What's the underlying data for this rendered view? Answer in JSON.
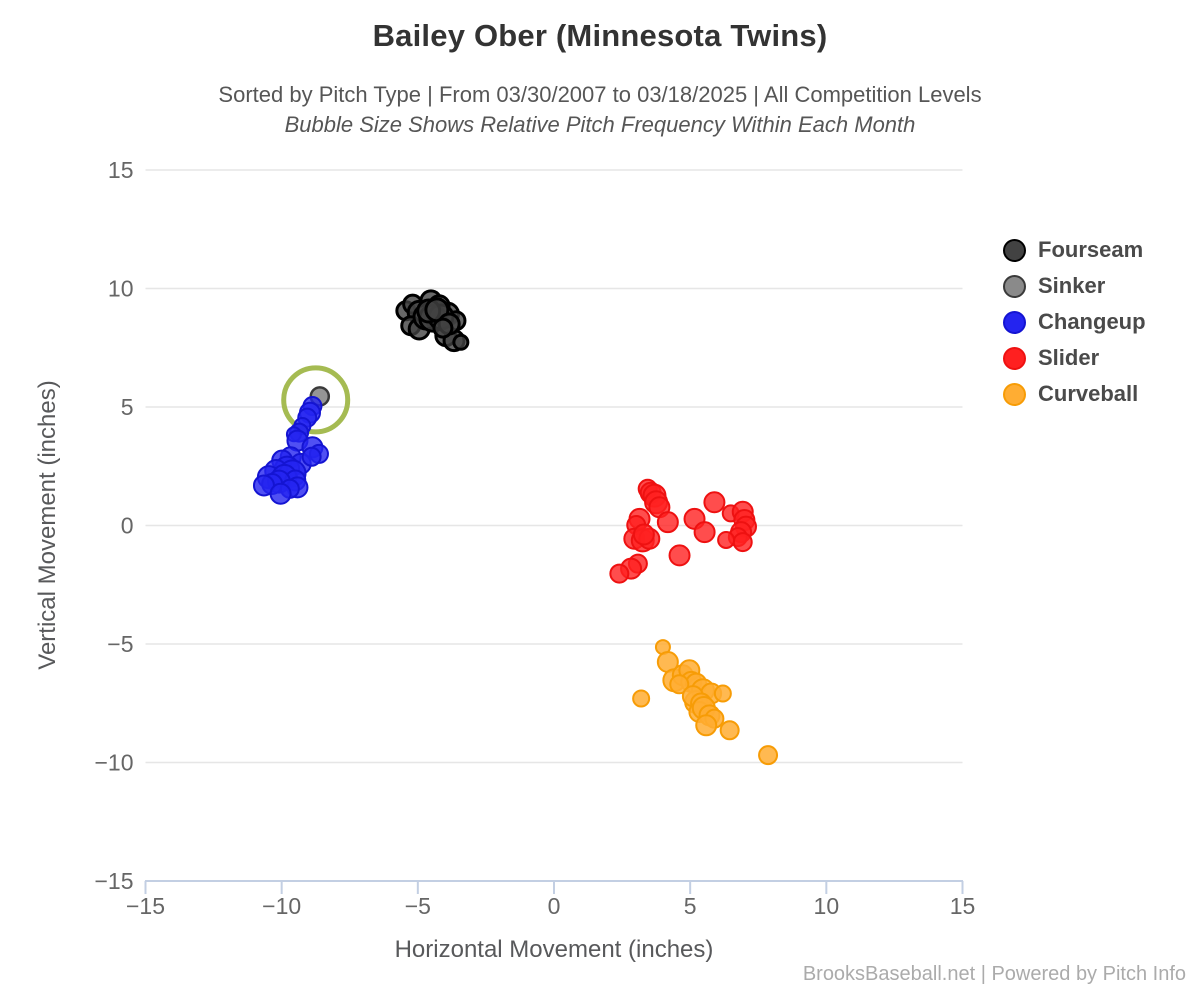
{
  "chart": {
    "title": "Bailey Ober (Minnesota Twins)",
    "subtitle": "Sorted by Pitch Type | From 03/30/2007 to 03/18/2025 | All Competition Levels",
    "subtitle_note": "Bubble Size Shows Relative Pitch Frequency Within Each Month"
  },
  "footer": {
    "text": "BrooksBaseball.net | Powered by Pitch Info"
  },
  "colors": {
    "background": "#ffffff",
    "grid": "#e6e6e6",
    "axis_line": "#c3cfe3",
    "tick_text": "#666666",
    "title_text": "#333333",
    "legend_text": "#4a4a4a",
    "highlight_ring": "#a5bb52"
  },
  "chart_data": {
    "type": "scatter",
    "title": "Bailey Ober (Minnesota Twins)",
    "xlabel": "Horizontal Movement (inches)",
    "ylabel": "Vertical Movement (inches)",
    "xlim": [
      -15,
      15
    ],
    "ylim": [
      -15,
      15
    ],
    "grid": "horizontal-only",
    "legend_position": "right",
    "xticks": [
      {
        "value": -15,
        "label": "−15"
      },
      {
        "value": -10,
        "label": "−10"
      },
      {
        "value": -5,
        "label": "−5"
      },
      {
        "value": 0,
        "label": "0"
      },
      {
        "value": 5,
        "label": "5"
      },
      {
        "value": 10,
        "label": "10"
      },
      {
        "value": 15,
        "label": "15"
      }
    ],
    "yticks": [
      {
        "value": 15,
        "label": "15"
      },
      {
        "value": 10,
        "label": "10"
      },
      {
        "value": 5,
        "label": "5"
      },
      {
        "value": 0,
        "label": "0"
      },
      {
        "value": -5,
        "label": "−5"
      },
      {
        "value": -10,
        "label": "−10"
      },
      {
        "value": -15,
        "label": "−15"
      }
    ],
    "annotation": {
      "type": "circle-highlight",
      "x": -8.75,
      "y": 5.3,
      "radius_px": 32,
      "color": "#a5bb52"
    },
    "series": [
      {
        "name": "Fourseam",
        "fill": "#424242",
        "border": "#000000",
        "fill_opacity": 0.8,
        "line_width": 3,
        "points": [
          [
            -5.44,
            9.06,
            9
          ],
          [
            -5.19,
            9.34,
            9
          ],
          [
            -4.52,
            9.48,
            10
          ],
          [
            -4.95,
            8.99,
            11
          ],
          [
            -4.34,
            8.99,
            12
          ],
          [
            -3.91,
            8.92,
            11
          ],
          [
            -3.6,
            8.64,
            9
          ],
          [
            -5.26,
            8.43,
            9
          ],
          [
            -4.95,
            8.29,
            10
          ],
          [
            -3.97,
            8.01,
            10
          ],
          [
            -3.67,
            7.8,
            10
          ],
          [
            -3.42,
            7.73,
            7
          ],
          [
            -4.22,
            9.27,
            10
          ],
          [
            -4.7,
            8.8,
            12
          ],
          [
            -4.45,
            8.75,
            13
          ],
          [
            -4.15,
            8.8,
            12
          ],
          [
            -4.6,
            9.05,
            11
          ],
          [
            -4.3,
            9.1,
            11
          ],
          [
            -3.85,
            8.5,
            10
          ],
          [
            -4.08,
            8.33,
            9
          ]
        ]
      },
      {
        "name": "Sinker",
        "fill": "#8a8a8a",
        "border": "#3a3a3a",
        "fill_opacity": 0.9,
        "line_width": 2.5,
        "points": [
          [
            -8.6,
            5.45,
            9
          ]
        ]
      },
      {
        "name": "Changeup",
        "fill": "#2424f0",
        "border": "#1414d2",
        "fill_opacity": 0.8,
        "line_width": 2,
        "points": [
          [
            -8.87,
            5.04,
            9
          ],
          [
            -8.96,
            4.76,
            10
          ],
          [
            -9.06,
            4.55,
            9
          ],
          [
            -9.24,
            4.2,
            8
          ],
          [
            -9.36,
            3.92,
            9
          ],
          [
            -9.55,
            3.85,
            7
          ],
          [
            -9.42,
            3.58,
            10
          ],
          [
            -8.87,
            3.3,
            10
          ],
          [
            -8.63,
            3.02,
            9
          ],
          [
            -9.67,
            2.88,
            10
          ],
          [
            -9.98,
            2.74,
            10
          ],
          [
            -9.3,
            2.6,
            10
          ],
          [
            -9.8,
            2.4,
            12
          ],
          [
            -10.2,
            2.3,
            11
          ],
          [
            -9.6,
            2.2,
            13
          ],
          [
            -10.47,
            2.04,
            11
          ],
          [
            -9.9,
            2.05,
            12
          ],
          [
            -9.5,
            1.9,
            10
          ],
          [
            -10.1,
            1.85,
            11
          ],
          [
            -10.35,
            1.75,
            10
          ],
          [
            -10.65,
            1.69,
            10
          ],
          [
            -9.42,
            1.61,
            10
          ],
          [
            -9.7,
            1.55,
            9
          ],
          [
            -10.04,
            1.34,
            10
          ],
          [
            -8.9,
            2.9,
            9
          ]
        ]
      },
      {
        "name": "Slider",
        "fill": "#ff2020",
        "border": "#ee1111",
        "fill_opacity": 0.8,
        "line_width": 2,
        "points": [
          [
            3.44,
            1.55,
            9
          ],
          [
            3.55,
            1.38,
            10
          ],
          [
            3.69,
            1.26,
            11
          ],
          [
            3.75,
            0.98,
            11
          ],
          [
            3.87,
            0.77,
            10
          ],
          [
            3.14,
            0.28,
            10
          ],
          [
            3.02,
            0.02,
            9
          ],
          [
            2.95,
            -0.56,
            10
          ],
          [
            3.26,
            -0.63,
            11
          ],
          [
            3.5,
            -0.56,
            10
          ],
          [
            3.3,
            -0.38,
            10
          ],
          [
            3.08,
            -1.61,
            9
          ],
          [
            2.83,
            -1.82,
            10
          ],
          [
            2.4,
            -2.03,
            9
          ],
          [
            4.61,
            -1.26,
            10
          ],
          [
            4.18,
            0.14,
            10
          ],
          [
            5.16,
            0.28,
            10
          ],
          [
            5.53,
            -0.28,
            10
          ],
          [
            5.89,
            0.98,
            10
          ],
          [
            6.49,
            0.51,
            8
          ],
          [
            6.93,
            0.58,
            10
          ],
          [
            6.99,
            0.23,
            10
          ],
          [
            7.05,
            -0.05,
            10
          ],
          [
            6.87,
            -0.28,
            10
          ],
          [
            6.75,
            -0.49,
            9
          ],
          [
            6.93,
            -0.7,
            9
          ],
          [
            6.32,
            -0.61,
            8
          ]
        ]
      },
      {
        "name": "Curveball",
        "fill": "#ffad33",
        "border": "#f79c06",
        "fill_opacity": 0.85,
        "line_width": 2,
        "points": [
          [
            4.0,
            -5.13,
            7
          ],
          [
            4.18,
            -5.76,
            10
          ],
          [
            4.42,
            -6.53,
            11
          ],
          [
            4.73,
            -6.32,
            10
          ],
          [
            4.97,
            -6.11,
            10
          ],
          [
            5.04,
            -6.6,
            10
          ],
          [
            5.22,
            -6.67,
            10
          ],
          [
            4.6,
            -6.7,
            9
          ],
          [
            5.47,
            -6.95,
            11
          ],
          [
            5.77,
            -7.09,
            10
          ],
          [
            6.2,
            -7.09,
            8
          ],
          [
            5.22,
            -7.45,
            11
          ],
          [
            5.1,
            -7.2,
            10
          ],
          [
            5.4,
            -7.51,
            10
          ],
          [
            5.34,
            -7.87,
            10
          ],
          [
            5.5,
            -7.7,
            11
          ],
          [
            5.71,
            -8.01,
            10
          ],
          [
            5.89,
            -8.15,
            9
          ],
          [
            5.59,
            -8.43,
            10
          ],
          [
            6.45,
            -8.64,
            9
          ],
          [
            3.2,
            -7.3,
            8
          ],
          [
            7.86,
            -9.69,
            9
          ]
        ]
      }
    ]
  }
}
